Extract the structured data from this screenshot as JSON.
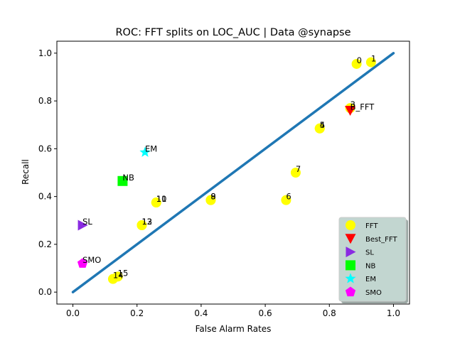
{
  "chart_data": {
    "type": "scatter",
    "title": "ROC: FFT splits on LOC_AUC  |  Data @synapse",
    "xlabel": "False Alarm Rates",
    "ylabel": "Recall",
    "xlim": [
      -0.05,
      1.05
    ],
    "ylim": [
      -0.05,
      1.05
    ],
    "xticks": [
      "0.0",
      "0.2",
      "0.4",
      "0.6",
      "0.8",
      "1.0"
    ],
    "yticks": [
      "0.0",
      "0.2",
      "0.4",
      "0.6",
      "0.8",
      "1.0"
    ],
    "grid": false,
    "legend_position": "lower right",
    "diagonal": {
      "from": [
        0,
        0
      ],
      "to": [
        1,
        1
      ],
      "color": "#1f77b4"
    },
    "series": [
      {
        "name": "FFT",
        "marker": "circle",
        "color": "#ffff00",
        "points": [
          {
            "label": "0",
            "x": 0.885,
            "y": 0.955
          },
          {
            "label": "1",
            "x": 0.93,
            "y": 0.962
          },
          {
            "label": "3",
            "x": 0.865,
            "y": 0.77
          },
          {
            "label": "4",
            "x": 0.77,
            "y": 0.685
          },
          {
            "label": "5",
            "x": 0.77,
            "y": 0.685
          },
          {
            "label": "7",
            "x": 0.695,
            "y": 0.5
          },
          {
            "label": "6",
            "x": 0.665,
            "y": 0.385
          },
          {
            "label": "8",
            "x": 0.43,
            "y": 0.385
          },
          {
            "label": "9",
            "x": 0.43,
            "y": 0.385
          },
          {
            "label": "10",
            "x": 0.26,
            "y": 0.375
          },
          {
            "label": "11",
            "x": 0.26,
            "y": 0.375
          },
          {
            "label": "12",
            "x": 0.215,
            "y": 0.28
          },
          {
            "label": "13",
            "x": 0.215,
            "y": 0.28
          },
          {
            "label": "14",
            "x": 0.125,
            "y": 0.055
          },
          {
            "label": "15",
            "x": 0.14,
            "y": 0.065
          }
        ]
      },
      {
        "name": "Best_FFT",
        "marker": "triangle-down",
        "color": "#ff0000",
        "points": [
          {
            "label": "B_FFT",
            "x": 0.865,
            "y": 0.76
          }
        ]
      },
      {
        "name": "SL",
        "marker": "triangle-right",
        "color": "#8a2be2",
        "points": [
          {
            "label": "SL",
            "x": 0.03,
            "y": 0.28
          }
        ]
      },
      {
        "name": "NB",
        "marker": "square",
        "color": "#00ff00",
        "points": [
          {
            "label": "NB",
            "x": 0.155,
            "y": 0.465
          }
        ]
      },
      {
        "name": "EM",
        "marker": "star",
        "color": "#00ffff",
        "points": [
          {
            "label": "EM",
            "x": 0.225,
            "y": 0.585
          }
        ]
      },
      {
        "name": "SMO",
        "marker": "pentagon",
        "color": "#ff00ff",
        "points": [
          {
            "label": "SMO",
            "x": 0.03,
            "y": 0.12
          }
        ]
      }
    ],
    "legend": [
      "FFT",
      "Best_FFT",
      "SL",
      "NB",
      "EM",
      "SMO"
    ],
    "legend_background": "#c2d6d0"
  }
}
